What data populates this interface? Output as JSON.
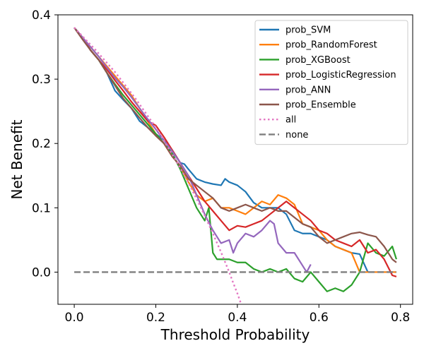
{
  "chart_data": {
    "type": "line",
    "xlabel": "Threshold Probability",
    "ylabel": "Net Benefit",
    "xlim": [
      -0.04,
      0.83
    ],
    "ylim": [
      -0.05,
      0.4
    ],
    "xticks": [
      0.0,
      0.2,
      0.4,
      0.6,
      0.8
    ],
    "yticks": [
      0.0,
      0.1,
      0.2,
      0.3,
      0.4
    ],
    "xtick_labels": [
      "0.0",
      "0.2",
      "0.4",
      "0.6",
      "0.8"
    ],
    "ytick_labels": [
      "0.0",
      "0.1",
      "0.2",
      "0.3",
      "0.4"
    ],
    "grid": false,
    "legend_position": "top-right",
    "series": [
      {
        "name": "prob_SVM",
        "color": "#1f77b4",
        "style": "solid",
        "x": [
          0.0,
          0.02,
          0.04,
          0.06,
          0.08,
          0.1,
          0.12,
          0.14,
          0.16,
          0.18,
          0.2,
          0.22,
          0.24,
          0.26,
          0.27,
          0.28,
          0.3,
          0.32,
          0.34,
          0.36,
          0.37,
          0.38,
          0.4,
          0.42,
          0.44,
          0.46,
          0.48,
          0.5,
          0.52,
          0.54,
          0.56,
          0.58,
          0.6,
          0.62,
          0.64,
          0.66,
          0.68,
          0.7,
          0.72,
          0.74,
          0.76,
          0.78,
          0.79
        ],
        "y": [
          0.38,
          0.365,
          0.345,
          0.33,
          0.31,
          0.282,
          0.268,
          0.255,
          0.235,
          0.225,
          0.215,
          0.205,
          0.19,
          0.17,
          0.168,
          0.16,
          0.145,
          0.14,
          0.137,
          0.135,
          0.145,
          0.14,
          0.135,
          0.125,
          0.108,
          0.1,
          0.1,
          0.1,
          0.09,
          0.065,
          0.06,
          0.06,
          0.055,
          0.05,
          0.04,
          0.035,
          0.03,
          0.028,
          0.0,
          0.0,
          0.0,
          0.0,
          0.0
        ]
      },
      {
        "name": "prob_RandomForest",
        "color": "#ff7f0e",
        "style": "solid",
        "x": [
          0.0,
          0.02,
          0.04,
          0.06,
          0.08,
          0.1,
          0.12,
          0.14,
          0.16,
          0.18,
          0.2,
          0.22,
          0.24,
          0.26,
          0.28,
          0.3,
          0.32,
          0.34,
          0.36,
          0.38,
          0.4,
          0.42,
          0.44,
          0.46,
          0.48,
          0.5,
          0.52,
          0.54,
          0.56,
          0.58,
          0.6,
          0.62,
          0.64,
          0.66,
          0.68,
          0.7,
          0.72,
          0.74,
          0.76,
          0.78,
          0.79
        ],
        "y": [
          0.38,
          0.365,
          0.35,
          0.335,
          0.32,
          0.305,
          0.29,
          0.275,
          0.255,
          0.235,
          0.215,
          0.2,
          0.18,
          0.165,
          0.14,
          0.12,
          0.11,
          0.115,
          0.1,
          0.1,
          0.095,
          0.09,
          0.1,
          0.11,
          0.105,
          0.12,
          0.115,
          0.105,
          0.075,
          0.07,
          0.065,
          0.05,
          0.04,
          0.035,
          0.03,
          0.0,
          0.0,
          0.0,
          0.0,
          0.0,
          0.0
        ]
      },
      {
        "name": "prob_XGBoost",
        "color": "#2ca02c",
        "style": "solid",
        "x": [
          0.0,
          0.02,
          0.04,
          0.06,
          0.08,
          0.1,
          0.12,
          0.14,
          0.16,
          0.18,
          0.2,
          0.22,
          0.24,
          0.26,
          0.28,
          0.3,
          0.32,
          0.33,
          0.34,
          0.35,
          0.36,
          0.38,
          0.4,
          0.42,
          0.44,
          0.46,
          0.48,
          0.5,
          0.52,
          0.54,
          0.56,
          0.58,
          0.6,
          0.62,
          0.64,
          0.66,
          0.68,
          0.7,
          0.72,
          0.74,
          0.76,
          0.78,
          0.79
        ],
        "y": [
          0.38,
          0.365,
          0.345,
          0.33,
          0.31,
          0.292,
          0.275,
          0.26,
          0.245,
          0.23,
          0.215,
          0.2,
          0.185,
          0.16,
          0.13,
          0.1,
          0.08,
          0.1,
          0.03,
          0.02,
          0.02,
          0.02,
          0.015,
          0.015,
          0.005,
          0.0,
          0.005,
          0.0,
          0.005,
          -0.01,
          -0.015,
          0.0,
          -0.015,
          -0.03,
          -0.025,
          -0.03,
          -0.02,
          0.0,
          0.045,
          0.03,
          0.025,
          0.04,
          0.02
        ]
      },
      {
        "name": "prob_LogisticRegression",
        "color": "#d62728",
        "style": "solid",
        "x": [
          0.0,
          0.02,
          0.04,
          0.06,
          0.08,
          0.1,
          0.12,
          0.14,
          0.16,
          0.18,
          0.2,
          0.22,
          0.24,
          0.26,
          0.28,
          0.3,
          0.32,
          0.34,
          0.36,
          0.38,
          0.4,
          0.42,
          0.44,
          0.46,
          0.48,
          0.5,
          0.52,
          0.54,
          0.56,
          0.58,
          0.6,
          0.62,
          0.64,
          0.66,
          0.68,
          0.7,
          0.72,
          0.74,
          0.76,
          0.78,
          0.79
        ],
        "y": [
          0.38,
          0.365,
          0.345,
          0.33,
          0.315,
          0.298,
          0.282,
          0.265,
          0.25,
          0.235,
          0.228,
          0.21,
          0.19,
          0.17,
          0.15,
          0.13,
          0.11,
          0.095,
          0.08,
          0.065,
          0.072,
          0.07,
          0.075,
          0.08,
          0.09,
          0.1,
          0.11,
          0.1,
          0.09,
          0.08,
          0.065,
          0.06,
          0.05,
          0.045,
          0.04,
          0.05,
          0.03,
          0.035,
          0.02,
          -0.005,
          -0.007
        ]
      },
      {
        "name": "prob_ANN",
        "color": "#9467bd",
        "style": "solid",
        "x": [
          0.0,
          0.02,
          0.04,
          0.06,
          0.08,
          0.1,
          0.12,
          0.14,
          0.16,
          0.18,
          0.2,
          0.22,
          0.24,
          0.26,
          0.28,
          0.3,
          0.32,
          0.34,
          0.36,
          0.38,
          0.39,
          0.4,
          0.42,
          0.44,
          0.46,
          0.48,
          0.49,
          0.5,
          0.52,
          0.54,
          0.56,
          0.57,
          0.58
        ],
        "y": [
          0.38,
          0.365,
          0.35,
          0.335,
          0.318,
          0.302,
          0.288,
          0.272,
          0.255,
          0.238,
          0.222,
          0.205,
          0.188,
          0.17,
          0.15,
          0.12,
          0.09,
          0.065,
          0.045,
          0.05,
          0.03,
          0.045,
          0.06,
          0.055,
          0.065,
          0.08,
          0.075,
          0.045,
          0.03,
          0.03,
          0.01,
          0.0,
          0.012
        ]
      },
      {
        "name": "prob_Ensemble",
        "color": "#8c564b",
        "style": "solid",
        "x": [
          0.0,
          0.02,
          0.04,
          0.06,
          0.08,
          0.1,
          0.12,
          0.14,
          0.16,
          0.18,
          0.2,
          0.22,
          0.24,
          0.26,
          0.28,
          0.3,
          0.32,
          0.34,
          0.36,
          0.38,
          0.4,
          0.42,
          0.44,
          0.46,
          0.48,
          0.5,
          0.52,
          0.54,
          0.56,
          0.58,
          0.6,
          0.62,
          0.64,
          0.66,
          0.68,
          0.7,
          0.72,
          0.74,
          0.76,
          0.78,
          0.79
        ],
        "y": [
          0.38,
          0.362,
          0.345,
          0.33,
          0.31,
          0.29,
          0.27,
          0.255,
          0.24,
          0.225,
          0.212,
          0.2,
          0.18,
          0.165,
          0.145,
          0.135,
          0.125,
          0.115,
          0.1,
          0.095,
          0.1,
          0.105,
          0.1,
          0.095,
          0.1,
          0.095,
          0.095,
          0.085,
          0.075,
          0.07,
          0.055,
          0.045,
          0.05,
          0.055,
          0.06,
          0.062,
          0.058,
          0.055,
          0.04,
          0.02,
          0.015
        ]
      },
      {
        "name": "all",
        "color": "#e377c2",
        "style": "dotted",
        "x": [
          0.0,
          0.05,
          0.1,
          0.15,
          0.2,
          0.25,
          0.28,
          0.3,
          0.32,
          0.34,
          0.36,
          0.38,
          0.39,
          0.4,
          0.41
        ],
        "y": [
          0.38,
          0.347,
          0.311,
          0.27,
          0.225,
          0.173,
          0.139,
          0.114,
          0.088,
          0.06,
          0.031,
          0.0,
          -0.017,
          -0.033,
          -0.051
        ]
      },
      {
        "name": "none",
        "color": "#7f7f7f",
        "style": "dashed",
        "x": [
          0.0,
          0.79
        ],
        "y": [
          0.0,
          0.0
        ]
      }
    ]
  }
}
